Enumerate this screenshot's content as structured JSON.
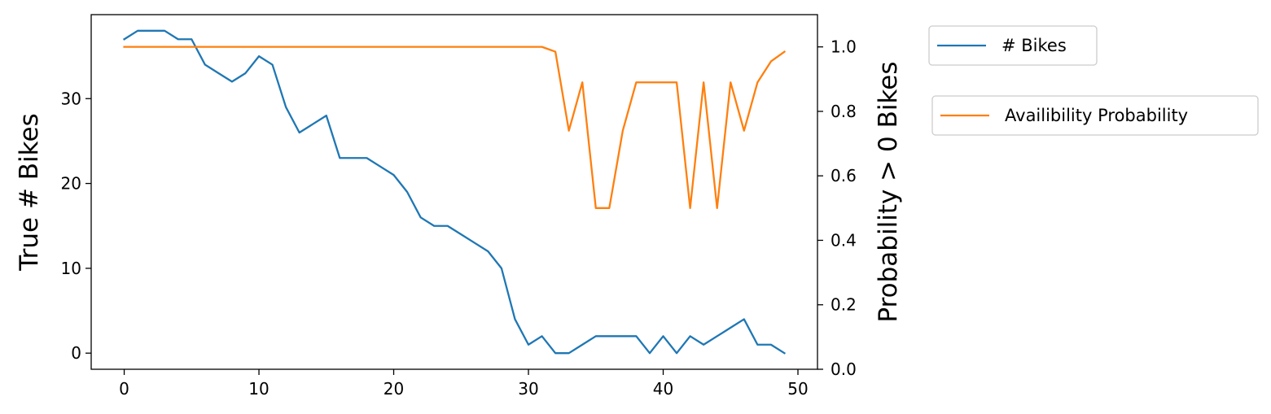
{
  "chart_data": {
    "type": "line",
    "title": "",
    "xlabel": "",
    "ylabel_left": "True # Bikes",
    "ylabel_right": "Probability > 0 Bikes",
    "xlim": [
      -2.45,
      51.45
    ],
    "ylim_left": [
      -1.9,
      39.9
    ],
    "ylim_right": [
      0.0,
      1.1
    ],
    "x_ticks": [
      "0",
      "10",
      "20",
      "30",
      "40",
      "50"
    ],
    "y_ticks_left": [
      "0",
      "10",
      "20",
      "30"
    ],
    "y_ticks_right": [
      "0.0",
      "0.2",
      "0.4",
      "0.6",
      "0.8",
      "1.0"
    ],
    "grid": false,
    "legend_placement": "outside right",
    "x": [
      0,
      1,
      2,
      3,
      4,
      5,
      6,
      7,
      8,
      9,
      10,
      11,
      12,
      13,
      14,
      15,
      16,
      17,
      18,
      19,
      20,
      21,
      22,
      23,
      24,
      25,
      26,
      27,
      28,
      29,
      30,
      31,
      32,
      33,
      34,
      35,
      36,
      37,
      38,
      39,
      40,
      41,
      42,
      43,
      44,
      45,
      46,
      47,
      48,
      49
    ],
    "series": [
      {
        "name": "# Bikes",
        "axis": "left",
        "color": "#1f77b4",
        "values": [
          37,
          38,
          38,
          38,
          37,
          37,
          34,
          33,
          32,
          33,
          35,
          34,
          29,
          26,
          27,
          28,
          23,
          23,
          23,
          22,
          21,
          19,
          16,
          15,
          15,
          14,
          13,
          12,
          10,
          4,
          1,
          2,
          0,
          0,
          1,
          2,
          2,
          2,
          2,
          0,
          2,
          0,
          2,
          1,
          2,
          3,
          4,
          1,
          1,
          0
        ]
      },
      {
        "name": "Availibility Probability",
        "axis": "right",
        "color": "#ff7f0e",
        "values": [
          1.0,
          1.0,
          1.0,
          1.0,
          1.0,
          1.0,
          1.0,
          1.0,
          1.0,
          1.0,
          1.0,
          1.0,
          1.0,
          1.0,
          1.0,
          1.0,
          1.0,
          1.0,
          1.0,
          1.0,
          1.0,
          1.0,
          1.0,
          1.0,
          1.0,
          1.0,
          1.0,
          1.0,
          1.0,
          1.0,
          1.0,
          1.0,
          0.985,
          0.74,
          0.89,
          0.5,
          0.5,
          0.74,
          0.89,
          0.89,
          0.89,
          0.89,
          0.5,
          0.89,
          0.5,
          0.89,
          0.74,
          0.89,
          0.955,
          0.985
        ]
      }
    ]
  }
}
